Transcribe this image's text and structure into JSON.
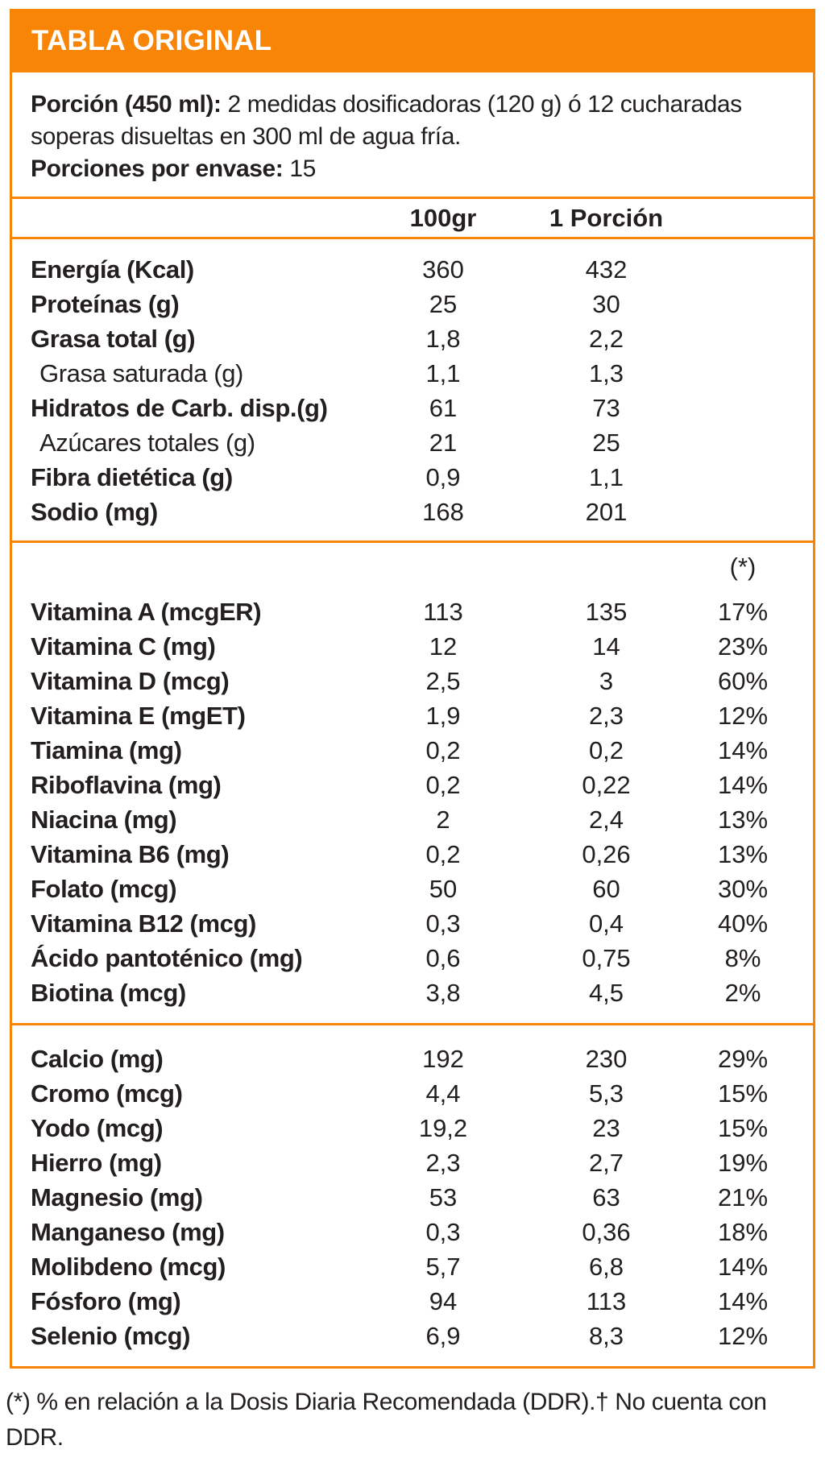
{
  "title": "TABLA ORIGINAL",
  "colors": {
    "accent": "#F98507",
    "text": "#231F20"
  },
  "serving": {
    "label": "Porción (450 ml):",
    "text": "2 medidas dosificadoras (120 g) ó 12 cucharadas soperas disueltas en 300 ml de agua fría.",
    "servings_label": "Porciones por envase:",
    "servings_value": "15"
  },
  "columns": {
    "per100": "100gr",
    "perServing": "1 Porción",
    "ddr": "(*)"
  },
  "sections": {
    "macros": [
      {
        "label": "Energía (Kcal)",
        "per100": "360",
        "serving": "432",
        "ddr": ""
      },
      {
        "label": "Proteínas (g)",
        "per100": "25",
        "serving": "30",
        "ddr": ""
      },
      {
        "label": "Grasa total (g)",
        "per100": "1,8",
        "serving": "2,2",
        "ddr": ""
      },
      {
        "label": "Grasa saturada (g)",
        "per100": "1,1",
        "serving": "1,3",
        "ddr": "",
        "bold": false,
        "indent": true
      },
      {
        "label": "Hidratos de Carb. disp.(g)",
        "per100": "61",
        "serving": "73",
        "ddr": ""
      },
      {
        "label": "Azúcares totales (g)",
        "per100": "21",
        "serving": "25",
        "ddr": "",
        "bold": false,
        "indent": true
      },
      {
        "label": "Fibra dietética (g)",
        "per100": "0,9",
        "serving": "1,1",
        "ddr": ""
      },
      {
        "label": "Sodio (mg)",
        "per100": "168",
        "serving": "201",
        "ddr": ""
      }
    ],
    "vitamins": [
      {
        "label": "Vitamina A (mcgER)",
        "per100": "113",
        "serving": "135",
        "ddr": "17%"
      },
      {
        "label": "Vitamina C (mg)",
        "per100": "12",
        "serving": "14",
        "ddr": "23%"
      },
      {
        "label": "Vitamina D (mcg)",
        "per100": "2,5",
        "serving": "3",
        "ddr": "60%"
      },
      {
        "label": "Vitamina E (mgET)",
        "per100": "1,9",
        "serving": "2,3",
        "ddr": "12%"
      },
      {
        "label": "Tiamina (mg)",
        "per100": "0,2",
        "serving": "0,2",
        "ddr": "14%"
      },
      {
        "label": "Riboflavina (mg)",
        "per100": "0,2",
        "serving": "0,22",
        "ddr": "14%"
      },
      {
        "label": "Niacina (mg)",
        "per100": "2",
        "serving": "2,4",
        "ddr": "13%"
      },
      {
        "label": "Vitamina B6 (mg)",
        "per100": "0,2",
        "serving": "0,26",
        "ddr": "13%"
      },
      {
        "label": "Folato (mcg)",
        "per100": "50",
        "serving": "60",
        "ddr": "30%"
      },
      {
        "label": "Vitamina B12 (mcg)",
        "per100": "0,3",
        "serving": "0,4",
        "ddr": "40%"
      },
      {
        "label": "Ácido pantoténico (mg)",
        "per100": "0,6",
        "serving": "0,75",
        "ddr": "8%"
      },
      {
        "label": "Biotina (mcg)",
        "per100": "3,8",
        "serving": "4,5",
        "ddr": "2%"
      }
    ],
    "minerals": [
      {
        "label": "Calcio (mg)",
        "per100": "192",
        "serving": "230",
        "ddr": "29%"
      },
      {
        "label": "Cromo (mcg)",
        "per100": "4,4",
        "serving": "5,3",
        "ddr": "15%"
      },
      {
        "label": "Yodo (mcg)",
        "per100": "19,2",
        "serving": "23",
        "ddr": "15%"
      },
      {
        "label": "Hierro (mg)",
        "per100": "2,3",
        "serving": "2,7",
        "ddr": "19%"
      },
      {
        "label": "Magnesio (mg)",
        "per100": "53",
        "serving": "63",
        "ddr": "21%"
      },
      {
        "label": "Manganeso (mg)",
        "per100": "0,3",
        "serving": "0,36",
        "ddr": "18%"
      },
      {
        "label": "Molibdeno (mcg)",
        "per100": "5,7",
        "serving": "6,8",
        "ddr": "14%"
      },
      {
        "label": "Fósforo (mg)",
        "per100": "94",
        "serving": "113",
        "ddr": "14%"
      },
      {
        "label": "Selenio (mcg)",
        "per100": "6,9",
        "serving": "8,3",
        "ddr": "12%"
      }
    ]
  },
  "footnote": "(*) % en relación a la Dosis Diaria Recomendada (DDR).† No cuenta con DDR."
}
